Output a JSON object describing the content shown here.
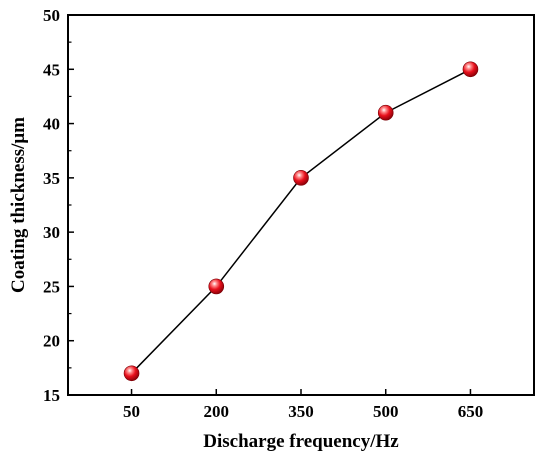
{
  "chart_data": {
    "type": "line",
    "title": "",
    "xlabel": "Discharge frequency/Hz",
    "ylabel": "Coating thickness/μm",
    "categories": [
      "50",
      "200",
      "350",
      "500",
      "650"
    ],
    "series": [
      {
        "values": [
          17,
          25,
          35,
          41,
          45
        ]
      }
    ],
    "ylim": [
      15,
      50
    ],
    "yticks": [
      15,
      20,
      25,
      30,
      35,
      40,
      45,
      50
    ],
    "xticks": [
      "50",
      "200",
      "350",
      "500",
      "650"
    ],
    "grid": false,
    "legend": "none",
    "colors": {
      "line": "#000000",
      "marker": "#e8101c",
      "marker_highlight": "#ffffff",
      "axis": "#000000"
    }
  }
}
